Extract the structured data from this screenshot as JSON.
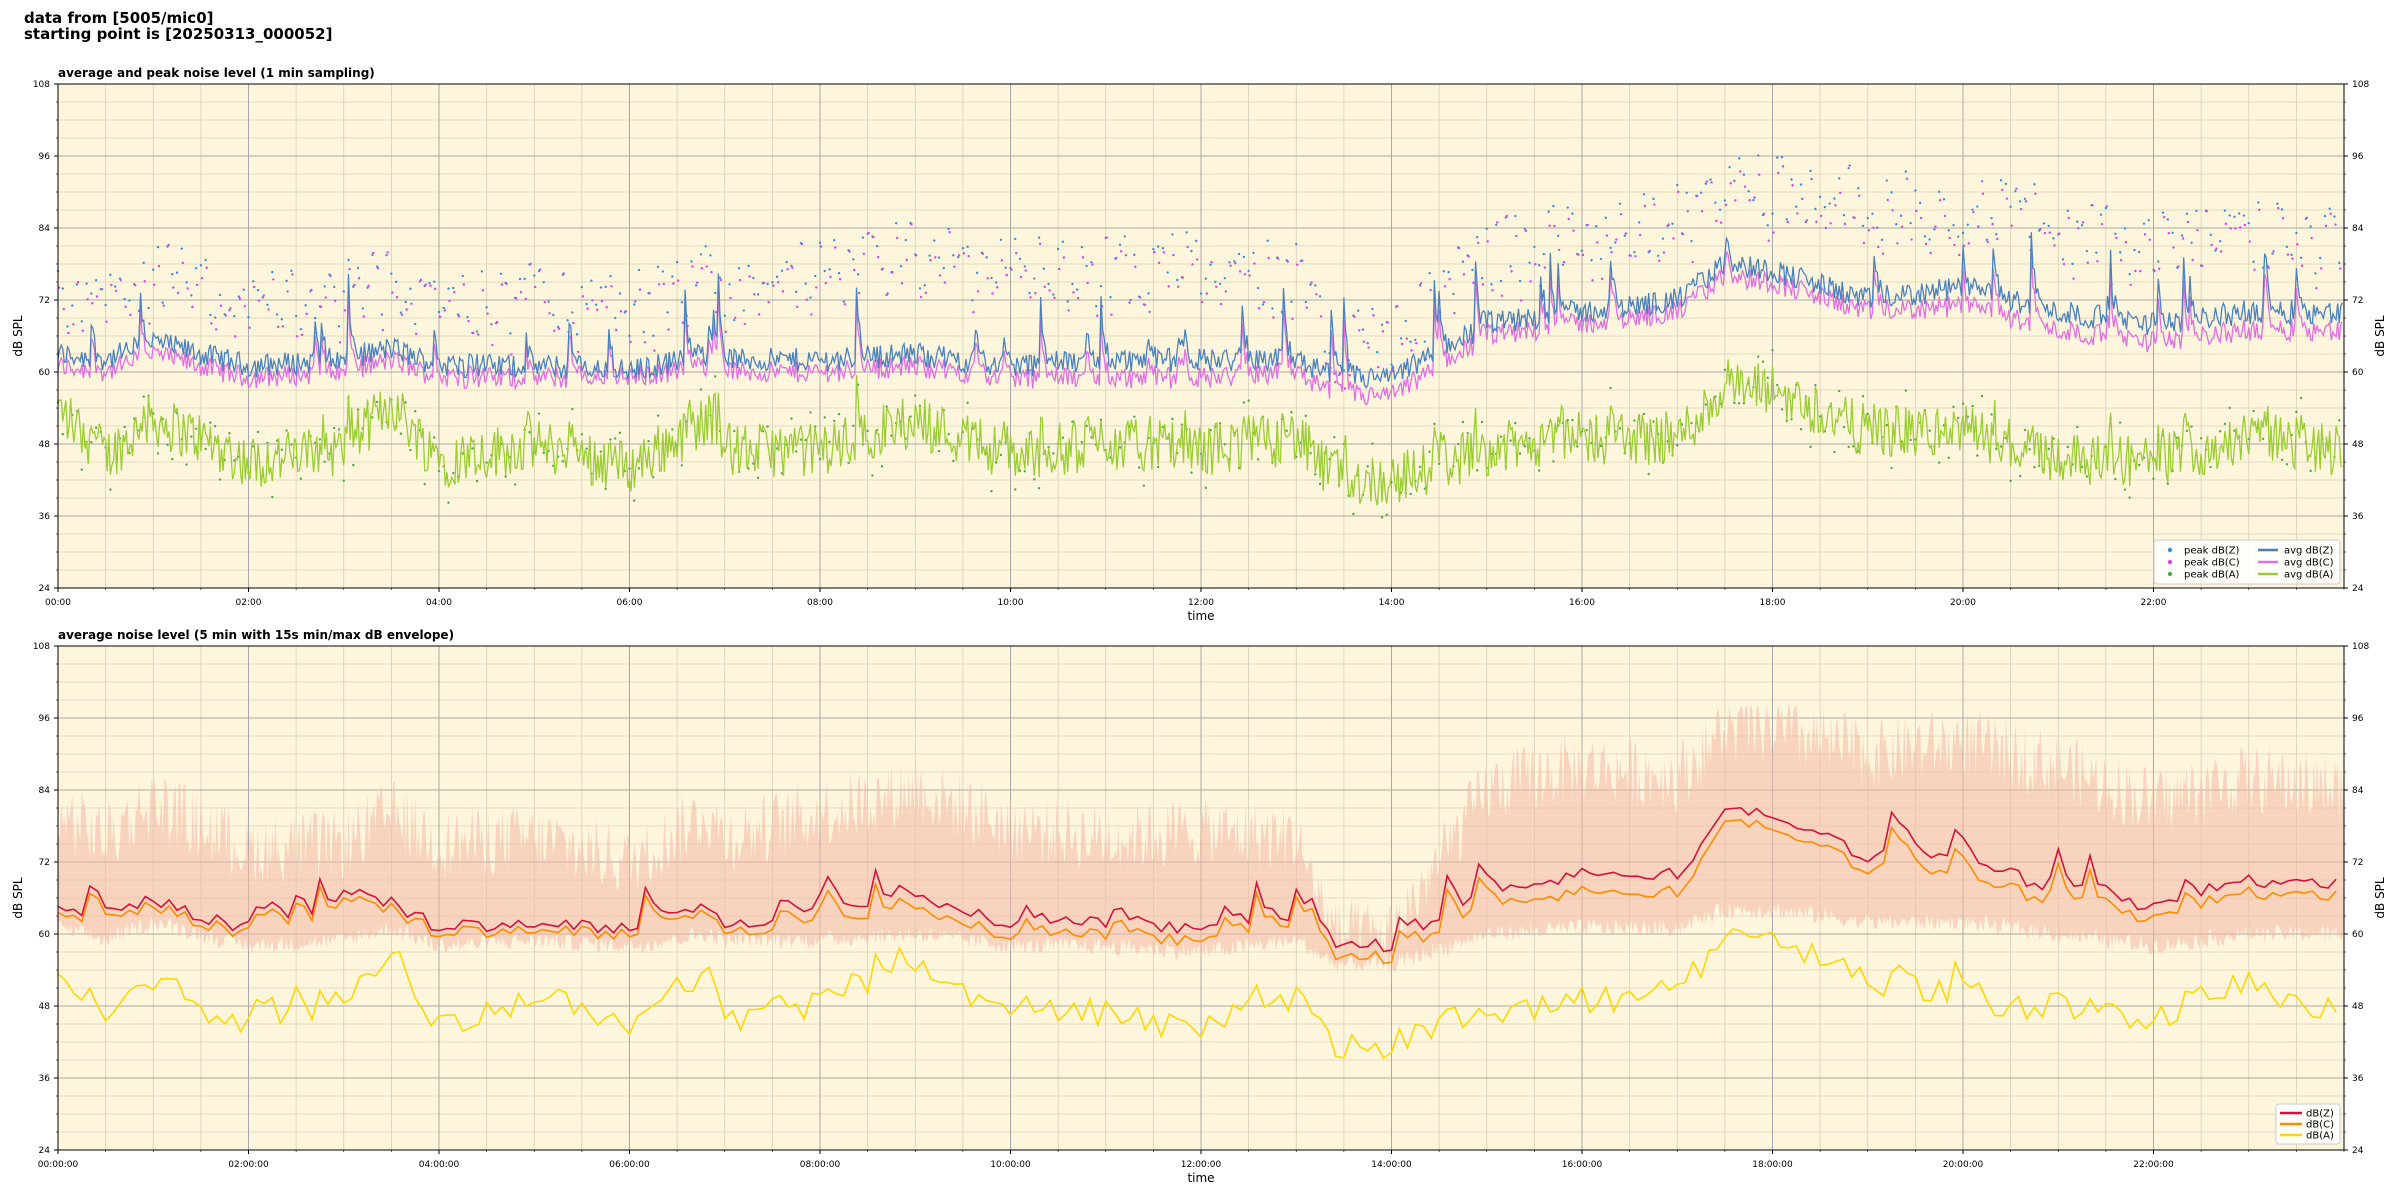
{
  "header": {
    "line1": "data from [5005/mic0]",
    "line2": "starting point is [20250313_000052]"
  },
  "colors": {
    "plot_bg": "#fdf6dc",
    "grid_major": "#a9a9a9",
    "grid_minor": "#d8cfb4",
    "peak_z": "#3b8fd6",
    "peak_c": "#e040e0",
    "peak_a": "#4caa40",
    "avg_z": "#4a82c0",
    "avg_c": "#e070e0",
    "avg_a": "#9acd32",
    "five_z": "#d6123a",
    "five_c": "#ff8c00",
    "five_a": "#ffd700",
    "envelope": "#f4b8a8"
  },
  "chart_data": [
    {
      "type": "line",
      "title": "average and peak noise level (1 min sampling)",
      "xlabel": "time",
      "ylabel": "dB SPL",
      "xlim": [
        "00:00",
        "24:00"
      ],
      "ylim": [
        24,
        108
      ],
      "yticks": [
        "24",
        "36",
        "48",
        "60",
        "72",
        "84",
        "96",
        "108"
      ],
      "xticks": [
        "00:00",
        "02:00",
        "04:00",
        "06:00",
        "08:00",
        "10:00",
        "12:00",
        "14:00",
        "16:00",
        "18:00",
        "20:00",
        "22:00"
      ],
      "grid": true,
      "legend_position": "bottom-right",
      "legend": [
        "peak dB(Z)",
        "peak dB(C)",
        "peak dB(A)",
        "avg dB(Z)",
        "avg dB(C)",
        "avg dB(A)"
      ],
      "series_levels": {
        "hours": [
          0,
          0.5,
          1,
          1.5,
          2,
          3,
          3.5,
          4,
          5,
          6,
          6.8,
          7,
          8,
          9,
          10,
          11,
          12,
          13,
          13.4,
          14,
          15,
          16,
          17,
          17.5,
          18,
          19,
          20,
          21,
          22,
          23,
          24
        ],
        "avg_z": [
          63,
          62,
          65,
          63,
          61,
          62,
          64,
          61,
          61,
          60,
          63,
          62,
          62,
          63,
          61,
          62,
          62,
          62,
          59,
          59,
          68,
          70,
          72,
          78,
          77,
          72,
          74,
          70,
          68,
          70,
          70
        ],
        "avg_c": [
          61,
          60,
          63,
          61,
          59,
          60,
          62,
          59,
          59,
          59,
          61,
          60,
          60,
          61,
          59,
          59,
          59,
          60,
          56,
          56,
          66,
          68,
          70,
          76,
          75,
          70,
          71,
          67,
          65,
          67,
          67
        ],
        "avg_a": [
          54,
          46,
          52,
          49,
          45,
          47,
          55,
          45,
          48,
          44,
          52,
          47,
          47,
          52,
          46,
          48,
          47,
          49,
          42,
          42,
          47,
          49,
          49,
          57,
          57,
          50,
          50,
          46,
          45,
          49,
          47
        ],
        "peak_z": [
          70,
          72,
          74,
          73,
          68,
          70,
          73,
          69,
          70,
          68,
          73,
          72,
          74,
          77,
          74,
          74,
          76,
          73,
          63,
          63,
          78,
          80,
          83,
          88,
          88,
          85,
          86,
          82,
          79,
          80,
          80
        ]
      }
    },
    {
      "type": "line",
      "title": "average noise level (5 min with 15s min/max dB envelope)",
      "xlabel": "time",
      "ylabel": "dB SPL",
      "xlim": [
        "00:00:00",
        "24:00:00"
      ],
      "ylim": [
        24,
        108
      ],
      "yticks": [
        "24",
        "36",
        "48",
        "60",
        "72",
        "84",
        "96",
        "108"
      ],
      "xticks": [
        "00:00:00",
        "02:00:00",
        "04:00:00",
        "06:00:00",
        "08:00:00",
        "10:00:00",
        "12:00:00",
        "14:00:00",
        "16:00:00",
        "18:00:00",
        "20:00:00",
        "22:00:00"
      ],
      "grid": true,
      "legend_position": "bottom-right",
      "legend": [
        "dB(Z)",
        "dB(C)",
        "dB(A)"
      ],
      "series_levels": {
        "hours": [
          0,
          0.5,
          1,
          1.5,
          2,
          3,
          3.5,
          4,
          5,
          6,
          6.8,
          7,
          8,
          9,
          10,
          11,
          12,
          13,
          13.4,
          14,
          15,
          16,
          17,
          17.5,
          18,
          19,
          20,
          21,
          22,
          23,
          24
        ],
        "z": [
          65,
          63,
          66,
          63,
          61,
          63,
          65,
          61,
          62,
          61,
          64,
          62,
          63,
          65,
          62,
          62,
          61,
          63,
          58,
          58,
          66,
          70,
          70,
          80,
          80,
          73,
          73,
          67,
          64,
          69,
          68
        ],
        "c": [
          64,
          62,
          65,
          62,
          60,
          62,
          64,
          60,
          61,
          60,
          63,
          61,
          61,
          63,
          60,
          60,
          59,
          62,
          56,
          56,
          64,
          67,
          67,
          78,
          78,
          71,
          70,
          65,
          62,
          67,
          66
        ],
        "a": [
          54,
          45,
          53,
          48,
          44,
          48,
          57,
          44,
          50,
          44,
          54,
          46,
          48,
          55,
          46,
          47,
          44,
          49,
          41,
          41,
          46,
          49,
          50,
          60,
          60,
          52,
          50,
          46,
          45,
          52,
          46
        ],
        "env_max": [
          80,
          76,
          82,
          78,
          74,
          75,
          80,
          75,
          76,
          72,
          80,
          76,
          80,
          84,
          78,
          76,
          77,
          76,
          60,
          60,
          84,
          88,
          86,
          94,
          94,
          90,
          92,
          88,
          82,
          86,
          84
        ],
        "env_min": [
          61,
          59,
          62,
          60,
          58,
          59,
          61,
          58,
          59,
          58,
          60,
          59,
          59,
          60,
          58,
          58,
          57,
          59,
          55,
          55,
          60,
          61,
          61,
          64,
          64,
          62,
          62,
          60,
          58,
          60,
          60
        ]
      }
    }
  ]
}
